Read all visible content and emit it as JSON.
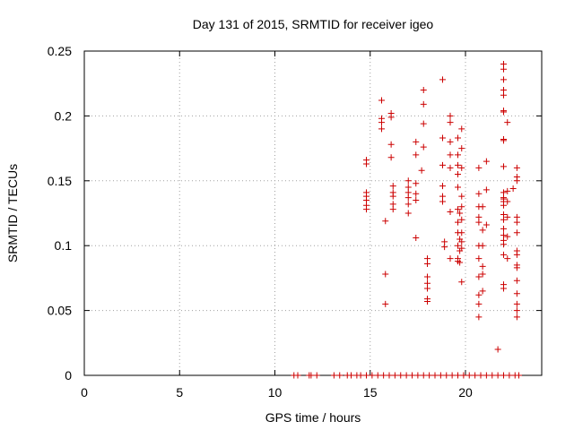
{
  "chart_data": {
    "type": "scatter",
    "title": "Day 131 of 2015, SRMTID for receiver igeo",
    "xlabel": "GPS time / hours",
    "ylabel": "SRMTID / TECUs",
    "xlim": [
      0,
      24
    ],
    "ylim": [
      0,
      0.25
    ],
    "xticks": [
      0,
      5,
      10,
      15,
      20
    ],
    "xtick_labels": [
      "0",
      "5",
      "10",
      "15",
      "20"
    ],
    "yticks": [
      0,
      0.05,
      0.1,
      0.15,
      0.2,
      0.25
    ],
    "ytick_labels": [
      "0",
      "0.05",
      "0.1",
      "0.15",
      "0.2",
      "0.25"
    ],
    "grid": true,
    "marker": "+",
    "color": "#cc0000",
    "series": [
      {
        "name": "SRMTID",
        "points": [
          [
            11.0,
            0
          ],
          [
            11.2,
            0
          ],
          [
            11.8,
            0
          ],
          [
            11.9,
            0
          ],
          [
            12.2,
            0
          ],
          [
            13.1,
            0
          ],
          [
            13.4,
            0
          ],
          [
            13.8,
            0
          ],
          [
            14.0,
            0
          ],
          [
            14.3,
            0
          ],
          [
            14.5,
            0
          ],
          [
            14.8,
            0
          ],
          [
            15.1,
            0
          ],
          [
            15.4,
            0
          ],
          [
            15.7,
            0
          ],
          [
            16.0,
            0
          ],
          [
            16.3,
            0
          ],
          [
            16.6,
            0
          ],
          [
            16.9,
            0
          ],
          [
            17.2,
            0
          ],
          [
            17.5,
            0
          ],
          [
            17.8,
            0
          ],
          [
            18.1,
            0
          ],
          [
            18.4,
            0
          ],
          [
            18.7,
            0
          ],
          [
            19.0,
            0
          ],
          [
            19.3,
            0
          ],
          [
            19.6,
            0
          ],
          [
            19.9,
            0
          ],
          [
            20.2,
            0
          ],
          [
            20.5,
            0
          ],
          [
            20.8,
            0
          ],
          [
            21.1,
            0
          ],
          [
            21.4,
            0
          ],
          [
            21.7,
            0
          ],
          [
            22.0,
            0
          ],
          [
            22.3,
            0
          ],
          [
            22.6,
            0
          ],
          [
            22.8,
            0
          ],
          [
            14.8,
            0.166
          ],
          [
            14.8,
            0.163
          ],
          [
            14.8,
            0.141
          ],
          [
            14.8,
            0.138
          ],
          [
            14.8,
            0.135
          ],
          [
            14.8,
            0.131
          ],
          [
            14.8,
            0.128
          ],
          [
            15.6,
            0.212
          ],
          [
            15.6,
            0.198
          ],
          [
            15.6,
            0.195
          ],
          [
            15.6,
            0.19
          ],
          [
            15.8,
            0.119
          ],
          [
            15.8,
            0.078
          ],
          [
            15.8,
            0.055
          ],
          [
            16.1,
            0.202
          ],
          [
            16.1,
            0.199
          ],
          [
            16.1,
            0.178
          ],
          [
            16.1,
            0.168
          ],
          [
            16.2,
            0.146
          ],
          [
            16.2,
            0.141
          ],
          [
            16.2,
            0.138
          ],
          [
            16.2,
            0.132
          ],
          [
            16.2,
            0.128
          ],
          [
            17.0,
            0.15
          ],
          [
            17.0,
            0.145
          ],
          [
            17.0,
            0.141
          ],
          [
            17.0,
            0.137
          ],
          [
            17.0,
            0.132
          ],
          [
            17.0,
            0.125
          ],
          [
            17.4,
            0.18
          ],
          [
            17.4,
            0.17
          ],
          [
            17.4,
            0.148
          ],
          [
            17.4,
            0.14
          ],
          [
            17.4,
            0.135
          ],
          [
            17.4,
            0.106
          ],
          [
            17.8,
            0.22
          ],
          [
            17.8,
            0.209
          ],
          [
            17.8,
            0.194
          ],
          [
            17.8,
            0.176
          ],
          [
            17.7,
            0.158
          ],
          [
            18.0,
            0.09
          ],
          [
            18.0,
            0.086
          ],
          [
            18.0,
            0.076
          ],
          [
            18.0,
            0.071
          ],
          [
            18.0,
            0.067
          ],
          [
            18.0,
            0.059
          ],
          [
            18.0,
            0.057
          ],
          [
            18.8,
            0.228
          ],
          [
            18.8,
            0.183
          ],
          [
            18.8,
            0.162
          ],
          [
            18.8,
            0.146
          ],
          [
            18.8,
            0.138
          ],
          [
            18.8,
            0.134
          ],
          [
            18.9,
            0.103
          ],
          [
            18.9,
            0.099
          ],
          [
            19.2,
            0.2
          ],
          [
            19.2,
            0.195
          ],
          [
            19.2,
            0.18
          ],
          [
            19.2,
            0.17
          ],
          [
            19.2,
            0.16
          ],
          [
            19.2,
            0.126
          ],
          [
            19.2,
            0.09
          ],
          [
            19.6,
            0.183
          ],
          [
            19.6,
            0.17
          ],
          [
            19.6,
            0.162
          ],
          [
            19.6,
            0.155
          ],
          [
            19.6,
            0.145
          ],
          [
            19.6,
            0.128
          ],
          [
            19.6,
            0.118
          ],
          [
            19.6,
            0.11
          ],
          [
            19.6,
            0.1
          ],
          [
            19.6,
            0.09
          ],
          [
            19.6,
            0.088
          ],
          [
            19.7,
            0.125
          ],
          [
            19.7,
            0.105
          ],
          [
            19.7,
            0.096
          ],
          [
            19.7,
            0.087
          ],
          [
            19.8,
            0.19
          ],
          [
            19.8,
            0.175
          ],
          [
            19.8,
            0.16
          ],
          [
            19.8,
            0.138
          ],
          [
            19.8,
            0.13
          ],
          [
            19.8,
            0.12
          ],
          [
            19.8,
            0.11
          ],
          [
            19.8,
            0.103
          ],
          [
            19.8,
            0.098
          ],
          [
            19.8,
            0.072
          ],
          [
            20.7,
            0.16
          ],
          [
            20.7,
            0.14
          ],
          [
            20.7,
            0.13
          ],
          [
            20.7,
            0.122
          ],
          [
            20.7,
            0.118
          ],
          [
            20.7,
            0.1
          ],
          [
            20.7,
            0.09
          ],
          [
            20.7,
            0.076
          ],
          [
            20.7,
            0.062
          ],
          [
            20.7,
            0.055
          ],
          [
            20.7,
            0.045
          ],
          [
            20.9,
            0.13
          ],
          [
            20.9,
            0.112
          ],
          [
            20.9,
            0.1
          ],
          [
            20.9,
            0.084
          ],
          [
            20.9,
            0.078
          ],
          [
            20.9,
            0.065
          ],
          [
            21.1,
            0.165
          ],
          [
            21.1,
            0.143
          ],
          [
            21.1,
            0.116
          ],
          [
            21.7,
            0.02
          ],
          [
            22.0,
            0.24
          ],
          [
            22.0,
            0.236
          ],
          [
            22.0,
            0.228
          ],
          [
            22.0,
            0.22
          ],
          [
            22.0,
            0.216
          ],
          [
            22.0,
            0.204
          ],
          [
            22.0,
            0.203
          ],
          [
            22.0,
            0.182
          ],
          [
            22.0,
            0.181
          ],
          [
            22.0,
            0.161
          ],
          [
            22.0,
            0.141
          ],
          [
            22.0,
            0.137
          ],
          [
            22.0,
            0.136
          ],
          [
            22.0,
            0.134
          ],
          [
            22.0,
            0.131
          ],
          [
            22.0,
            0.124
          ],
          [
            22.0,
            0.12
          ],
          [
            22.0,
            0.113
          ],
          [
            22.0,
            0.108
          ],
          [
            22.0,
            0.104
          ],
          [
            22.0,
            0.101
          ],
          [
            22.0,
            0.093
          ],
          [
            22.0,
            0.07
          ],
          [
            22.0,
            0.067
          ],
          [
            22.2,
            0.195
          ],
          [
            22.2,
            0.142
          ],
          [
            22.2,
            0.134
          ],
          [
            22.2,
            0.122
          ],
          [
            22.2,
            0.107
          ],
          [
            22.2,
            0.09
          ],
          [
            22.5,
            0.144
          ],
          [
            22.7,
            0.16
          ],
          [
            22.7,
            0.153
          ],
          [
            22.7,
            0.15
          ],
          [
            22.7,
            0.122
          ],
          [
            22.7,
            0.118
          ],
          [
            22.7,
            0.11
          ],
          [
            22.7,
            0.096
          ],
          [
            22.7,
            0.093
          ],
          [
            22.7,
            0.085
          ],
          [
            22.7,
            0.083
          ],
          [
            22.7,
            0.073
          ],
          [
            22.7,
            0.063
          ],
          [
            22.7,
            0.055
          ],
          [
            22.7,
            0.05
          ],
          [
            22.7,
            0.045
          ]
        ]
      }
    ]
  }
}
